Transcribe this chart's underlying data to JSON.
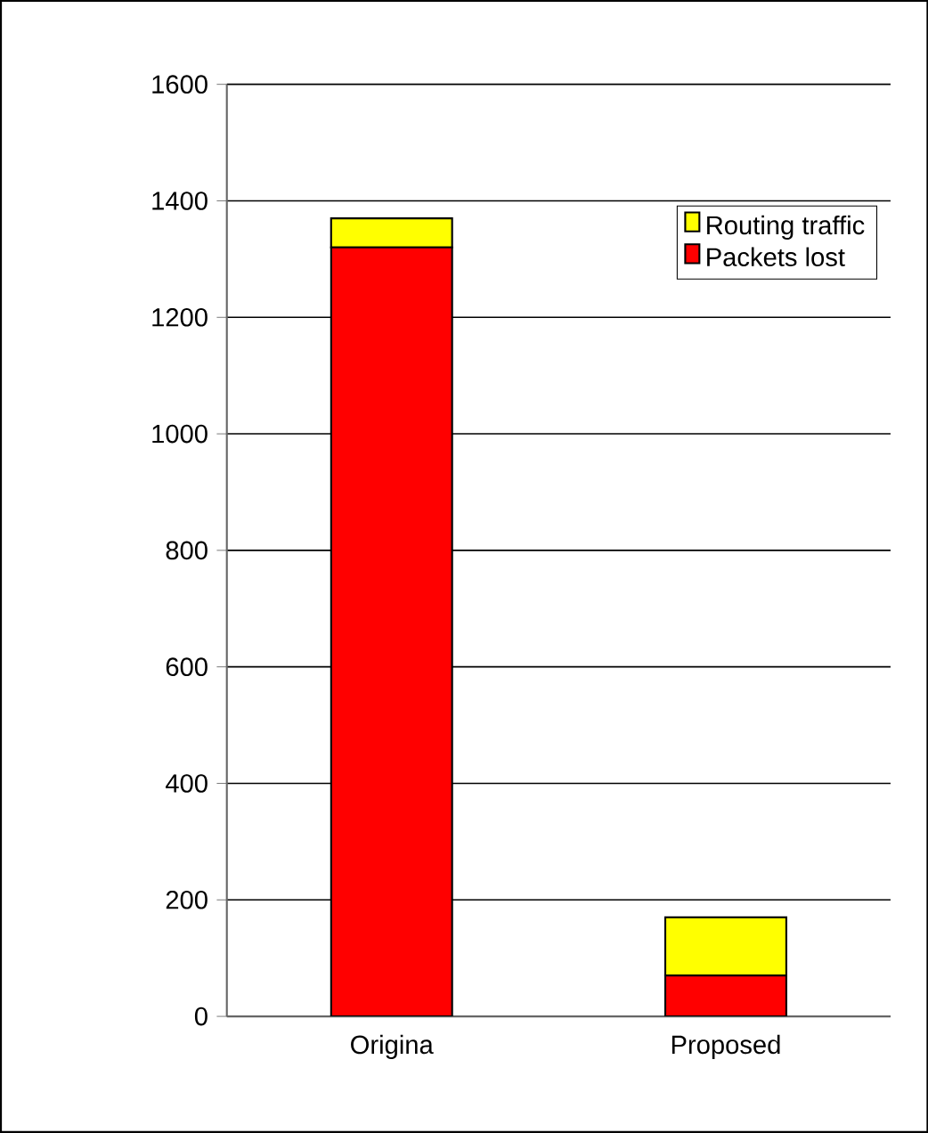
{
  "chart_data": {
    "type": "bar",
    "stacked": true,
    "categories": [
      "Origina",
      "Proposed"
    ],
    "series": [
      {
        "name": "Packets lost",
        "color": "#ff0000",
        "values": [
          1320,
          70
        ]
      },
      {
        "name": "Routing traffic",
        "color": "#ffff00",
        "values": [
          50,
          100
        ]
      }
    ],
    "ylim": [
      0,
      1600
    ],
    "yticks": [
      0,
      200,
      400,
      600,
      800,
      1000,
      1200,
      1400,
      1600
    ],
    "grid": "y",
    "legend": "top right"
  }
}
